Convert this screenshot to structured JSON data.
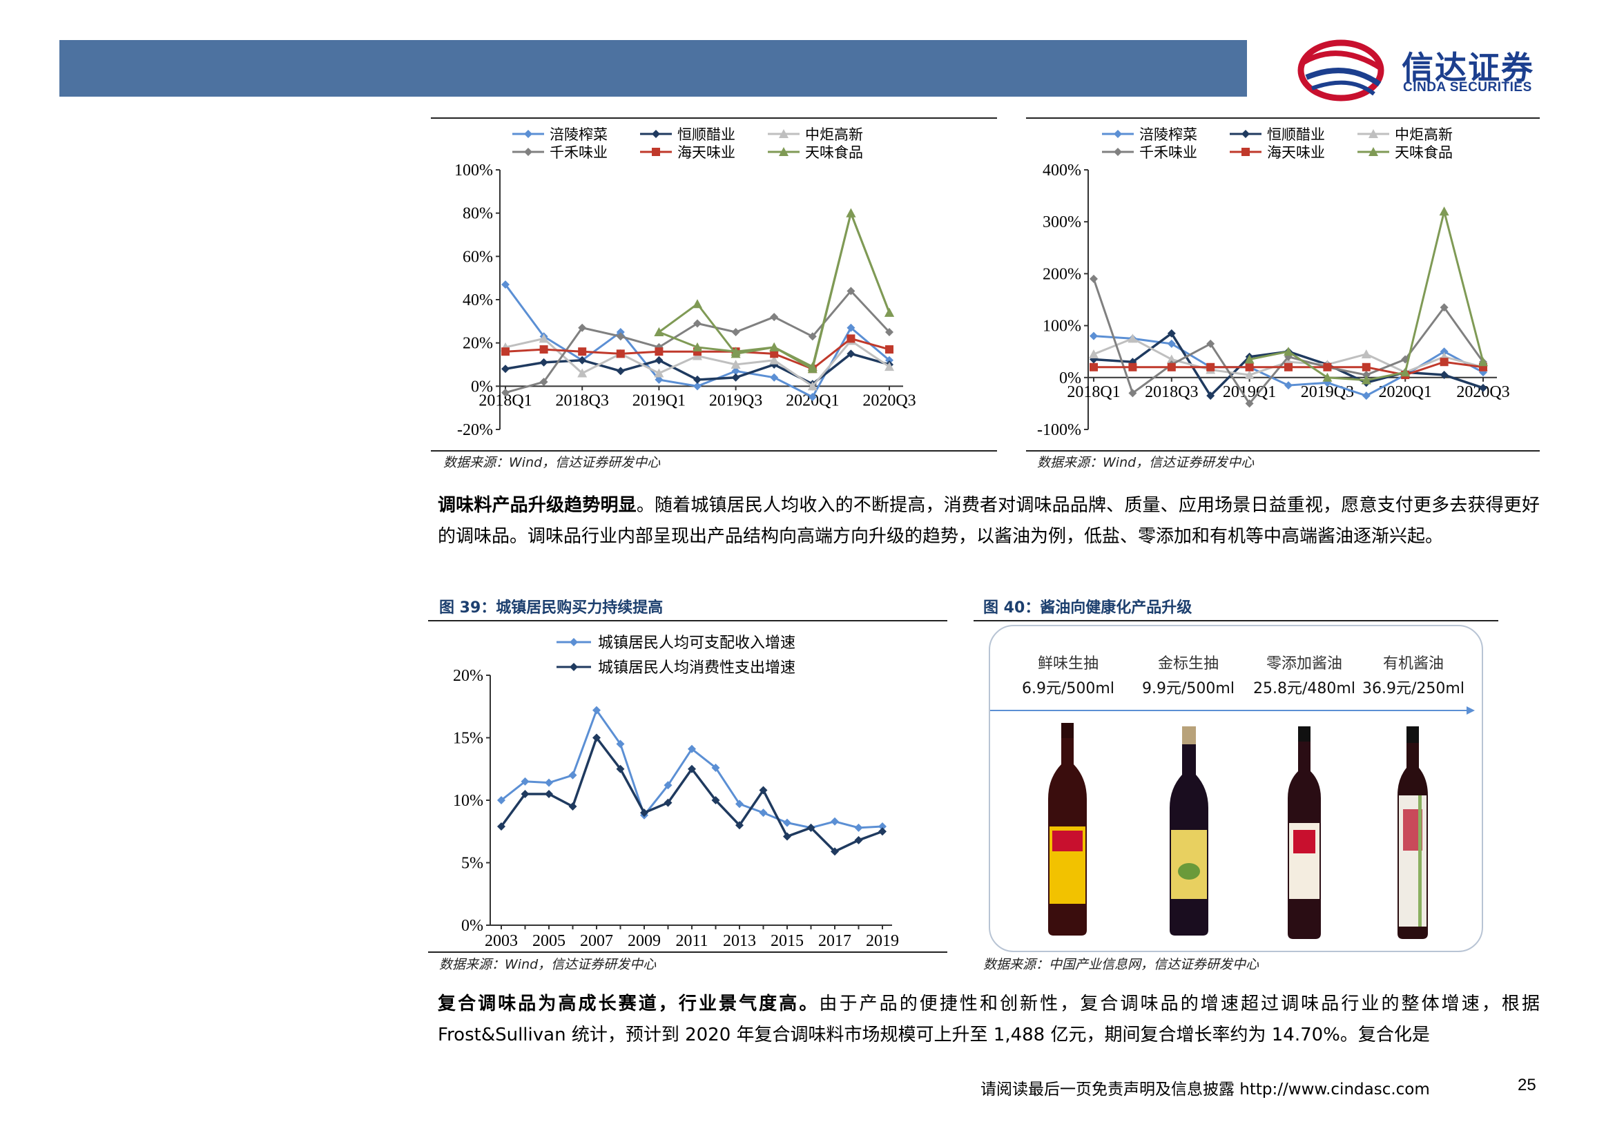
{
  "header": {
    "brand_cn": "信达证券",
    "brand_en": "CINDA SECURITIES"
  },
  "colors": {
    "header_bar": "#4d72a0",
    "fuling": "#5b8fd4",
    "hengshun": "#1f3a5f",
    "zhongju": "#bfbfbf",
    "qianhe": "#808080",
    "haitian": "#c0392b",
    "tianwei": "#7f9a55"
  },
  "chart_data": [
    {
      "type": "line",
      "x": [
        "2018Q1",
        "2018Q2",
        "2018Q3",
        "2018Q4",
        "2019Q1",
        "2019Q2",
        "2019Q3",
        "2019Q4",
        "2020Q1",
        "2020Q2",
        "2020Q3"
      ],
      "x_tick_labels": [
        "2018Q1",
        "2018Q3",
        "2019Q1",
        "2019Q3",
        "2020Q1",
        "2020Q3"
      ],
      "ylim": [
        -0.2,
        1.0
      ],
      "y_ticks": [
        "100%",
        "80%",
        "60%",
        "40%",
        "20%",
        "0%",
        "-20%"
      ],
      "series": [
        {
          "name": "涪陵榨菜",
          "values": [
            0.47,
            0.23,
            0.12,
            0.25,
            0.03,
            0.0,
            0.07,
            0.04,
            -0.05,
            0.27,
            0.12
          ]
        },
        {
          "name": "恒顺醋业",
          "values": [
            0.08,
            0.11,
            0.12,
            0.07,
            0.12,
            0.03,
            0.04,
            0.1,
            0.01,
            0.15,
            0.1
          ]
        },
        {
          "name": "中炬高新",
          "values": [
            0.18,
            0.22,
            0.06,
            0.15,
            0.06,
            0.14,
            0.1,
            0.12,
            0.0,
            0.21,
            0.09
          ]
        },
        {
          "name": "千禾味业",
          "values": [
            -0.03,
            0.02,
            0.27,
            0.23,
            0.18,
            0.29,
            0.25,
            0.32,
            0.23,
            0.44,
            0.25
          ]
        },
        {
          "name": "海天味业",
          "values": [
            0.16,
            0.17,
            0.16,
            0.15,
            0.16,
            0.16,
            0.16,
            0.15,
            0.08,
            0.22,
            0.17
          ]
        },
        {
          "name": "天味食品",
          "values": [
            null,
            null,
            null,
            null,
            0.25,
            0.38,
            0.15,
            0.18,
            0.08,
            0.8,
            0.34
          ]
        },
        {
          "name": "",
          "values": [
            null,
            null,
            null,
            null,
            0.25,
            0.18,
            0.16,
            0.18,
            0.09,
            0.8,
            0.34
          ]
        }
      ]
    },
    {
      "type": "line",
      "x": [
        "2018Q1",
        "2018Q2",
        "2018Q3",
        "2018Q4",
        "2019Q1",
        "2019Q2",
        "2019Q3",
        "2019Q4",
        "2020Q1",
        "2020Q2",
        "2020Q3"
      ],
      "x_tick_labels": [
        "2018Q1",
        "2018Q3",
        "2019Q1",
        "2019Q3",
        "2020Q1",
        "2020Q3"
      ],
      "ylim": [
        -1.0,
        4.0
      ],
      "y_ticks": [
        "400%",
        "300%",
        "200%",
        "100%",
        "0%",
        "-100%"
      ],
      "series": [
        {
          "name": "涪陵榨菜",
          "values": [
            0.8,
            0.75,
            0.65,
            0.2,
            0.2,
            -0.15,
            -0.1,
            -0.35,
            0.05,
            0.5,
            0.1
          ]
        },
        {
          "name": "恒顺醋业",
          "values": [
            0.35,
            0.3,
            0.85,
            -0.35,
            0.4,
            0.5,
            0.25,
            -0.1,
            0.1,
            0.05,
            -0.2
          ]
        },
        {
          "name": "中炬高新",
          "values": [
            0.45,
            0.75,
            0.35,
            0.15,
            0.05,
            0.3,
            0.25,
            0.45,
            0.1,
            0.4,
            0.2
          ]
        },
        {
          "name": "千禾味业",
          "values": [
            1.9,
            -0.3,
            0.25,
            0.65,
            -0.5,
            0.4,
            0.2,
            0.05,
            0.35,
            1.35,
            0.3
          ]
        },
        {
          "name": "海天味业",
          "values": [
            0.2,
            0.2,
            0.2,
            0.2,
            0.2,
            0.2,
            0.2,
            0.2,
            0.05,
            0.3,
            0.2
          ]
        },
        {
          "name": "天味食品",
          "values": [
            null,
            null,
            null,
            null,
            0.35,
            0.5,
            0.0,
            -0.05,
            0.1,
            3.2,
            0.3
          ]
        }
      ]
    },
    {
      "type": "line",
      "x": [
        2003,
        2004,
        2005,
        2006,
        2007,
        2008,
        2009,
        2010,
        2011,
        2012,
        2013,
        2014,
        2015,
        2016,
        2017,
        2018,
        2019
      ],
      "x_tick_labels": [
        "2003",
        "2005",
        "2007",
        "2009",
        "2011",
        "2013",
        "2015",
        "2017",
        "2019"
      ],
      "ylim": [
        0,
        0.2
      ],
      "y_ticks": [
        "20%",
        "15%",
        "10%",
        "5%",
        "0%"
      ],
      "series": [
        {
          "name": "城镇居民人均可支配收入增速",
          "values": [
            0.1,
            0.115,
            0.114,
            0.12,
            0.172,
            0.145,
            0.088,
            0.112,
            0.141,
            0.126,
            0.097,
            0.09,
            0.082,
            0.078,
            0.083,
            0.078,
            0.079
          ]
        },
        {
          "name": "城镇居民人均消费性支出增速",
          "values": [
            0.079,
            0.105,
            0.105,
            0.095,
            0.15,
            0.125,
            0.09,
            0.098,
            0.125,
            0.1,
            0.08,
            0.108,
            0.071,
            0.078,
            0.059,
            0.068,
            0.075
          ]
        }
      ]
    }
  ],
  "chart1_source": "数据来源：Wind，信达证券研发中心",
  "chart2_source": "数据来源：Wind，信达证券研发中心",
  "para1": {
    "bold": "调味料产品升级趋势明显",
    "text": "。随着城镇居民人均收入的不断提高，消费者对调味品品牌、质量、应用场景日益重视，愿意支付更多去获得更好的调味品。调味品行业内部呈现出产品结构向高端方向升级的趋势，以酱油为例，低盐、零添加和有机等中高端酱油逐渐兴起。"
  },
  "fig39": {
    "title": "图 39：城镇居民购买力持续提高",
    "source": "数据来源：Wind，信达证券研发中心"
  },
  "fig40": {
    "title": "图 40：酱油向健康化产品升级",
    "source": "数据来源：中国产业信息网，信达证券研发中心",
    "products": [
      {
        "name": "鲜味生抽",
        "price": "6.9元/500ml"
      },
      {
        "name": "金标生抽",
        "price": "9.9元/500ml"
      },
      {
        "name": "零添加酱油",
        "price": "25.8元/480ml"
      },
      {
        "name": "有机酱油",
        "price": "36.9元/250ml"
      }
    ]
  },
  "para2": {
    "bold": "复合调味品为高成长赛道，行业景气度高。",
    "text": "由于产品的便捷性和创新性，复合调味品的增速超过调味品行业的整体增速，根据 Frost&Sullivan 统计，预计到 2020 年复合调味料市场规模可上升至 1,488 亿元，期间复合增长率约为 14.70%。复合化是"
  },
  "footer": {
    "text": "请阅读最后一页免责声明及信息披露 http://www.cindasc.com",
    "page": "25"
  }
}
